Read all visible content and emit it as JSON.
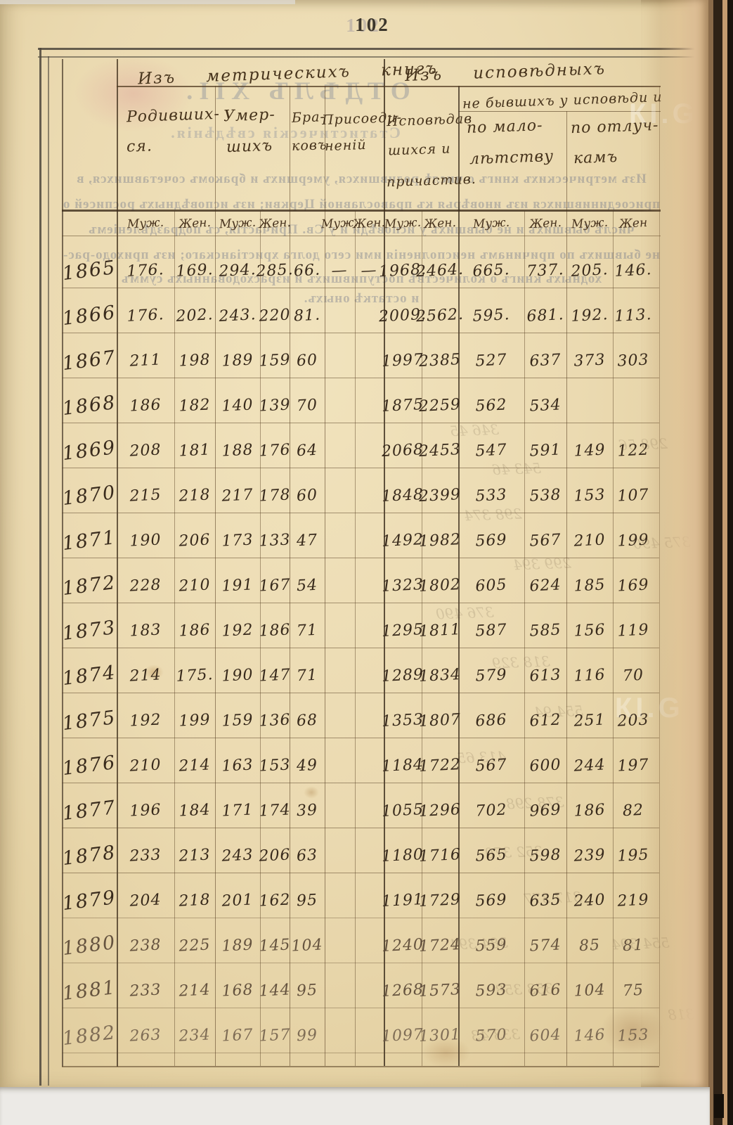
{
  "page_number": "102",
  "watermark": "КІ.G",
  "table": {
    "group_headers": {
      "metric": "Изъ метрическихъ книгъ",
      "ispoved": "Изъ исповѣдныхъ",
      "ne_byvshih": "не бывшихъ у исповѣди и"
    },
    "column_headers": {
      "born": [
        "Родивших-",
        "ся."
      ],
      "died": [
        "Умер-",
        "шихъ"
      ],
      "marriages": [
        "Бра-",
        "ковъ"
      ],
      "joined": [
        "Присоеди-",
        "неній"
      ],
      "confessed": [
        "Исповѣдав",
        "шихся и",
        "причастив."
      ],
      "minors": [
        "по мало-",
        "лѣтству"
      ],
      "absent": [
        "по отлуч-",
        "камъ"
      ]
    },
    "sex_labels": [
      "Муж.",
      "Жен.",
      "Муж.",
      "Жен.",
      "Муж.",
      "Жен.",
      "Муж.",
      "Жен.",
      "Муж.",
      "Жен.",
      "Муж.",
      "Жен"
    ],
    "rows": [
      {
        "year": "1865",
        "values": [
          "176.",
          "169.",
          "294.",
          "285.",
          "66.",
          "—",
          "—",
          "1968.",
          "2464.",
          "665.",
          "737.",
          "205.",
          "146."
        ]
      },
      {
        "year": "1866",
        "values": [
          "176.",
          "202.",
          "243.",
          "220",
          "81.",
          "",
          "",
          "2009.",
          "2562.",
          "595.",
          "681.",
          "192.",
          "113."
        ]
      },
      {
        "year": "1867",
        "values": [
          "211",
          "198",
          "189",
          "159",
          "60",
          "",
          "",
          "1997",
          "2385",
          "527",
          "637",
          "373",
          "303"
        ]
      },
      {
        "year": "1868",
        "values": [
          "186",
          "182",
          "140",
          "139",
          "70",
          "",
          "",
          "1875",
          "2259",
          "562",
          "534",
          "",
          ""
        ]
      },
      {
        "year": "1869",
        "values": [
          "208",
          "181",
          "188",
          "176",
          "64",
          "",
          "",
          "2068",
          "2453",
          "547",
          "591",
          "149",
          "122"
        ]
      },
      {
        "year": "1870",
        "values": [
          "215",
          "218",
          "217",
          "178",
          "60",
          "",
          "",
          "1848",
          "2399",
          "533",
          "538",
          "153",
          "107"
        ]
      },
      {
        "year": "1871",
        "values": [
          "190",
          "206",
          "173",
          "133",
          "47",
          "",
          "",
          "1492",
          "1982",
          "569",
          "567",
          "210",
          "199"
        ]
      },
      {
        "year": "1872",
        "values": [
          "228",
          "210",
          "191",
          "167",
          "54",
          "",
          "",
          "1323",
          "1802",
          "605",
          "624",
          "185",
          "169"
        ]
      },
      {
        "year": "1873",
        "values": [
          "183",
          "186",
          "192",
          "186",
          "71",
          "",
          "",
          "1295",
          "1811",
          "587",
          "585",
          "156",
          "119"
        ]
      },
      {
        "year": "1874",
        "values": [
          "214",
          "175.",
          "190",
          "147",
          "71",
          "",
          "",
          "1289",
          "1834",
          "579",
          "613",
          "116",
          "70"
        ]
      },
      {
        "year": "1875",
        "values": [
          "192",
          "199",
          "159",
          "136",
          "68",
          "",
          "",
          "1353",
          "1807",
          "686",
          "612",
          "251",
          "203"
        ]
      },
      {
        "year": "1876",
        "values": [
          "210",
          "214",
          "163",
          "153",
          "49",
          "",
          "",
          "1184",
          "1722",
          "567",
          "600",
          "244",
          "197"
        ]
      },
      {
        "year": "1877",
        "values": [
          "196",
          "184",
          "171",
          "174",
          "39",
          "",
          "",
          "1055",
          "1296",
          "702",
          "969",
          "186",
          "82"
        ]
      },
      {
        "year": "1878",
        "values": [
          "233",
          "213",
          "243",
          "206",
          "63",
          "",
          "",
          "1180",
          "1716",
          "565",
          "598",
          "239",
          "195"
        ]
      },
      {
        "year": "1879",
        "values": [
          "204",
          "218",
          "201",
          "162",
          "95",
          "",
          "",
          "1191",
          "1729",
          "569",
          "635",
          "240",
          "219"
        ]
      },
      {
        "year": "1880",
        "values": [
          "238",
          "225",
          "189",
          "145",
          "104",
          "",
          "",
          "1240",
          "1724",
          "559",
          "574",
          "85",
          "81"
        ]
      },
      {
        "year": "1881",
        "values": [
          "233",
          "214",
          "168",
          "144",
          "95",
          "",
          "",
          "1268",
          "1573",
          "593",
          "616",
          "104",
          "75"
        ]
      },
      {
        "year": "1882",
        "values": [
          "263",
          "234",
          "167",
          "157",
          "99",
          "",
          "",
          "1097",
          "1301",
          "570",
          "604",
          "146",
          "153"
        ]
      }
    ]
  },
  "bleedthrough": {
    "title": "ОТДѢЛЪ XII.",
    "subtitle": "Статистическія свѣдѣнія.",
    "lines": [
      "Изъ метрическихъ книгъ о числѣ родившихся, умершихъ и бракомъ сочетавшихся, в",
      "присоединившихся изъ иновѣрья къ православной Церкви; изъ исповѣдныхъ росписей о",
      "числѣ бывшихъ и не бывшихъ у исповѣди и у Св. Причастія, съ подраздѣленіемъ",
      "не бывшихъ по причинамъ неисполненія ими сего долга христіанскаго; изъ приходо-рас-",
      "ходныхъ книгъ о количествѣ поступившихъ и израсходованныхъ суммъ",
      "и остаткѣ оныхъ."
    ],
    "ghost_numbers": [
      "346 45",
      "543 46",
      "298 374",
      "299 394",
      "376 490",
      "318 329",
      "554 94",
      "413 65",
      "378 298",
      "352 370",
      "317 377",
      "384 394",
      "353 358",
      "333 43",
      "298 56",
      "375 490",
      "554 394",
      "353 318"
    ]
  }
}
